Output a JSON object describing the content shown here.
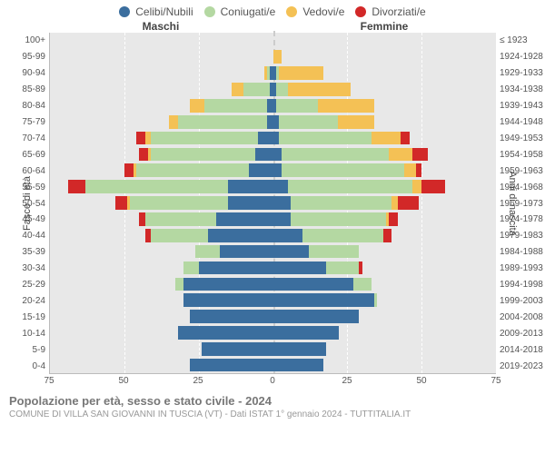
{
  "legend": [
    {
      "label": "Celibi/Nubili",
      "color": "#3b6e9e"
    },
    {
      "label": "Coniugati/e",
      "color": "#b4d8a2"
    },
    {
      "label": "Vedovi/e",
      "color": "#f4c155"
    },
    {
      "label": "Divorziati/e",
      "color": "#d22828"
    }
  ],
  "sides": {
    "male": "Maschi",
    "female": "Femmine"
  },
  "axes": {
    "left_title": "Fasce di età",
    "right_title": "Anni di nascita",
    "xlim": 75,
    "xticks": [
      75,
      50,
      25,
      0,
      25,
      50,
      75
    ],
    "grid_color": "#ffffff",
    "background_color": "#e8e8e8"
  },
  "age_brackets": [
    "100+",
    "95-99",
    "90-94",
    "85-89",
    "80-84",
    "75-79",
    "70-74",
    "65-69",
    "60-64",
    "55-59",
    "50-54",
    "45-49",
    "40-44",
    "35-39",
    "30-34",
    "25-29",
    "20-24",
    "15-19",
    "10-14",
    "5-9",
    "0-4"
  ],
  "birth_years": [
    "≤ 1923",
    "1924-1928",
    "1929-1933",
    "1934-1938",
    "1939-1943",
    "1944-1948",
    "1949-1953",
    "1954-1958",
    "1959-1963",
    "1964-1968",
    "1969-1973",
    "1974-1978",
    "1979-1983",
    "1984-1988",
    "1989-1993",
    "1994-1998",
    "1999-2003",
    "2004-2008",
    "2009-2013",
    "2014-2018",
    "2019-2023"
  ],
  "data": [
    {
      "m": {
        "cel": 0,
        "con": 0,
        "ved": 0,
        "div": 0
      },
      "f": {
        "cel": 0,
        "con": 0,
        "ved": 0,
        "div": 0
      }
    },
    {
      "m": {
        "cel": 0,
        "con": 0,
        "ved": 0,
        "div": 0
      },
      "f": {
        "cel": 0,
        "con": 0,
        "ved": 3,
        "div": 0
      }
    },
    {
      "m": {
        "cel": 1,
        "con": 1,
        "ved": 1,
        "div": 0
      },
      "f": {
        "cel": 1,
        "con": 1,
        "ved": 15,
        "div": 0
      }
    },
    {
      "m": {
        "cel": 1,
        "con": 9,
        "ved": 4,
        "div": 0
      },
      "f": {
        "cel": 1,
        "con": 4,
        "ved": 21,
        "div": 0
      }
    },
    {
      "m": {
        "cel": 2,
        "con": 21,
        "ved": 5,
        "div": 0
      },
      "f": {
        "cel": 1,
        "con": 14,
        "ved": 19,
        "div": 0
      }
    },
    {
      "m": {
        "cel": 2,
        "con": 30,
        "ved": 3,
        "div": 0
      },
      "f": {
        "cel": 2,
        "con": 20,
        "ved": 12,
        "div": 0
      }
    },
    {
      "m": {
        "cel": 5,
        "con": 36,
        "ved": 2,
        "div": 3
      },
      "f": {
        "cel": 2,
        "con": 31,
        "ved": 10,
        "div": 3
      }
    },
    {
      "m": {
        "cel": 6,
        "con": 35,
        "ved": 1,
        "div": 3
      },
      "f": {
        "cel": 3,
        "con": 36,
        "ved": 8,
        "div": 5
      }
    },
    {
      "m": {
        "cel": 8,
        "con": 38,
        "ved": 1,
        "div": 3
      },
      "f": {
        "cel": 3,
        "con": 41,
        "ved": 4,
        "div": 2
      }
    },
    {
      "m": {
        "cel": 15,
        "con": 48,
        "ved": 0,
        "div": 6
      },
      "f": {
        "cel": 5,
        "con": 42,
        "ved": 3,
        "div": 8
      }
    },
    {
      "m": {
        "cel": 15,
        "con": 33,
        "ved": 1,
        "div": 4
      },
      "f": {
        "cel": 6,
        "con": 34,
        "ved": 2,
        "div": 7
      }
    },
    {
      "m": {
        "cel": 19,
        "con": 24,
        "ved": 0,
        "div": 2
      },
      "f": {
        "cel": 6,
        "con": 32,
        "ved": 1,
        "div": 3
      }
    },
    {
      "m": {
        "cel": 22,
        "con": 19,
        "ved": 0,
        "div": 2
      },
      "f": {
        "cel": 10,
        "con": 27,
        "ved": 0,
        "div": 3
      }
    },
    {
      "m": {
        "cel": 18,
        "con": 8,
        "ved": 0,
        "div": 0
      },
      "f": {
        "cel": 12,
        "con": 17,
        "ved": 0,
        "div": 0
      }
    },
    {
      "m": {
        "cel": 25,
        "con": 5,
        "ved": 0,
        "div": 0
      },
      "f": {
        "cel": 18,
        "con": 11,
        "ved": 0,
        "div": 1
      }
    },
    {
      "m": {
        "cel": 30,
        "con": 3,
        "ved": 0,
        "div": 0
      },
      "f": {
        "cel": 27,
        "con": 6,
        "ved": 0,
        "div": 0
      }
    },
    {
      "m": {
        "cel": 30,
        "con": 0,
        "ved": 0,
        "div": 0
      },
      "f": {
        "cel": 34,
        "con": 1,
        "ved": 0,
        "div": 0
      }
    },
    {
      "m": {
        "cel": 28,
        "con": 0,
        "ved": 0,
        "div": 0
      },
      "f": {
        "cel": 29,
        "con": 0,
        "ved": 0,
        "div": 0
      }
    },
    {
      "m": {
        "cel": 32,
        "con": 0,
        "ved": 0,
        "div": 0
      },
      "f": {
        "cel": 22,
        "con": 0,
        "ved": 0,
        "div": 0
      }
    },
    {
      "m": {
        "cel": 24,
        "con": 0,
        "ved": 0,
        "div": 0
      },
      "f": {
        "cel": 18,
        "con": 0,
        "ved": 0,
        "div": 0
      }
    },
    {
      "m": {
        "cel": 28,
        "con": 0,
        "ved": 0,
        "div": 0
      },
      "f": {
        "cel": 17,
        "con": 0,
        "ved": 0,
        "div": 0
      }
    }
  ],
  "caption": {
    "main": "Popolazione per età, sesso e stato civile - 2024",
    "sub": "COMUNE DI VILLA SAN GIOVANNI IN TUSCIA (VT) - Dati ISTAT 1° gennaio 2024 - TUTTITALIA.IT"
  },
  "chart_type": "population-pyramid",
  "font_family": "Arial",
  "label_fontsize": 10,
  "title_fontsize": 13
}
